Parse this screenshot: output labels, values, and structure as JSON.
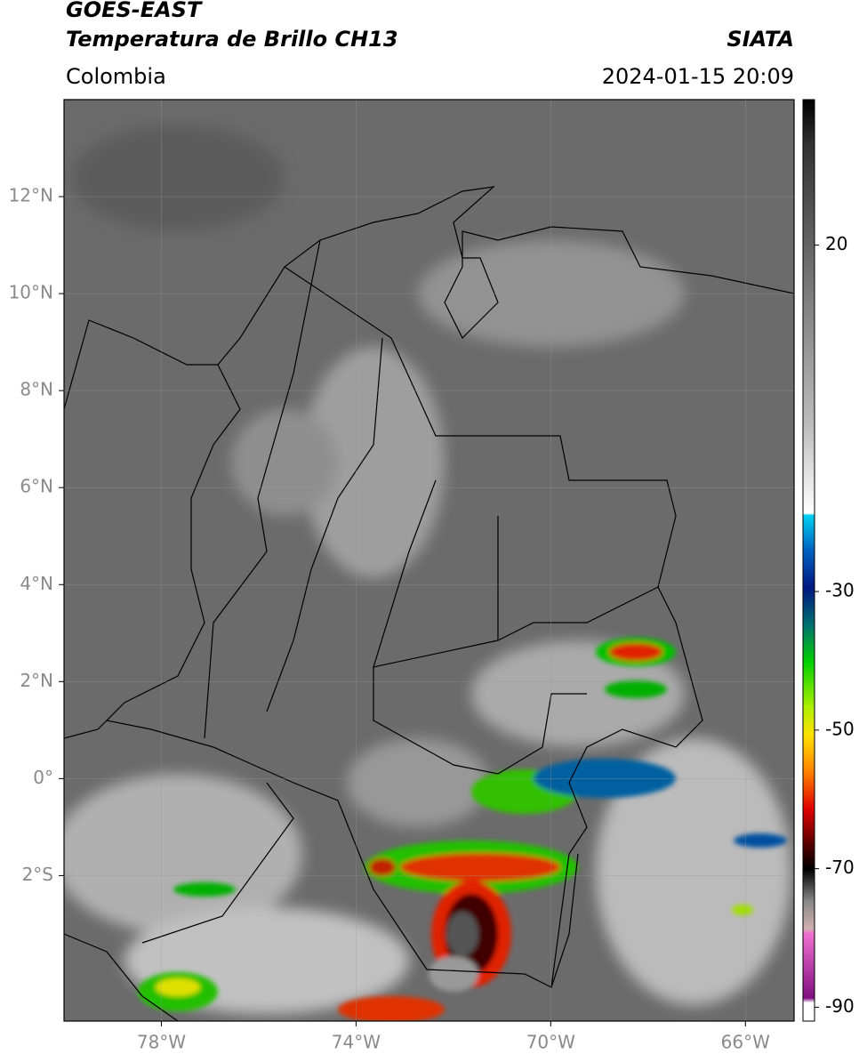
{
  "header": {
    "title_line1": "GOES-EAST",
    "title_line2": "Temperatura de Brillo CH13",
    "source": "SIATA",
    "region": "Colombia",
    "datetime": "2024-01-15 20:09"
  },
  "map": {
    "lon_lim": [
      -80,
      -65
    ],
    "lat_lim": [
      -5,
      14
    ],
    "lat_ticks": [
      {
        "value": 12,
        "label": "12°N"
      },
      {
        "value": 10,
        "label": "10°N"
      },
      {
        "value": 8,
        "label": "8°N"
      },
      {
        "value": 6,
        "label": "6°N"
      },
      {
        "value": 4,
        "label": "4°N"
      },
      {
        "value": 2,
        "label": "2°N"
      },
      {
        "value": 0,
        "label": "0°"
      },
      {
        "value": -2,
        "label": "2°S"
      }
    ],
    "lon_ticks": [
      {
        "value": -78,
        "label": "78°W"
      },
      {
        "value": -74,
        "label": "74°W"
      },
      {
        "value": -70,
        "label": "70°W"
      },
      {
        "value": -66,
        "label": "66°W"
      }
    ]
  },
  "colorbar": {
    "lim": [
      -92,
      41
    ],
    "ticks": [
      20,
      -30,
      -50,
      -70,
      -90
    ]
  }
}
